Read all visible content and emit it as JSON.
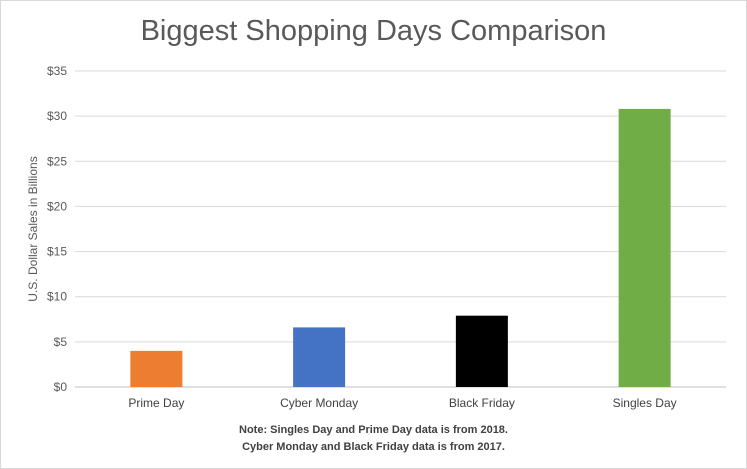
{
  "chart_data": {
    "type": "bar",
    "title": "Biggest Shopping Days Comparison",
    "ylabel": "U.S. Dollar Sales in Billions",
    "xlabel": "",
    "categories": [
      "Prime Day",
      "Cyber Monday",
      "Black Friday",
      "Singles Day"
    ],
    "values": [
      4.0,
      6.6,
      7.9,
      30.8
    ],
    "bar_colors": [
      "#ed7d31",
      "#4472c4",
      "#000000",
      "#70ad47"
    ],
    "ylim": [
      0,
      35
    ],
    "yticks": [
      0,
      5,
      10,
      15,
      20,
      25,
      30,
      35
    ],
    "ytick_labels": [
      "$0",
      "$5",
      "$10",
      "$15",
      "$20",
      "$25",
      "$30",
      "$35"
    ],
    "grid": true,
    "legend": "none",
    "notes": [
      "Note: Singles Day and Prime Day data is from 2018.",
      "Cyber Monday and Black Friday data is from 2017."
    ]
  }
}
